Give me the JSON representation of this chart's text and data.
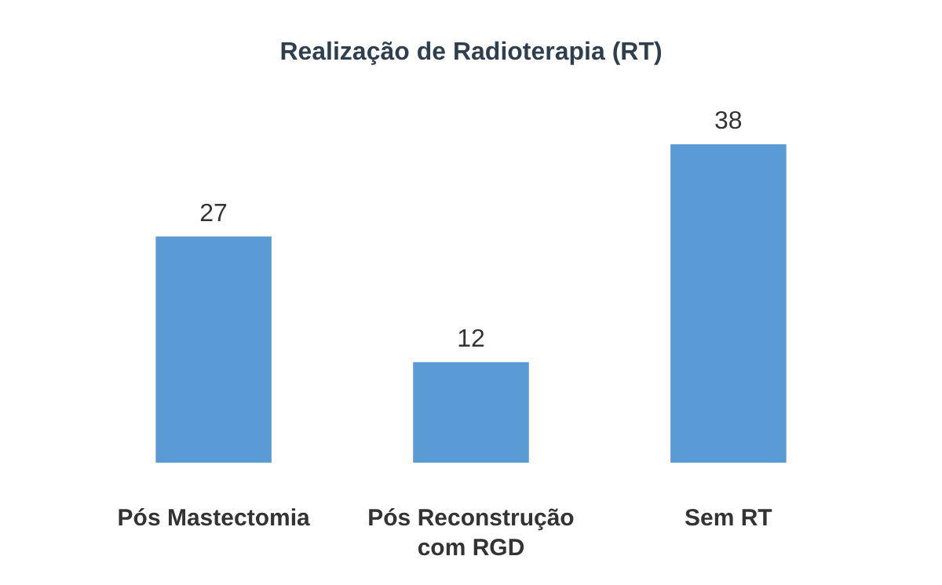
{
  "chart_data": {
    "type": "bar",
    "title": "Realização de Radioterapia (RT)",
    "categories": [
      "Pós Mastectomia",
      "Pós Reconstrução com RGD",
      "Sem RT"
    ],
    "values": [
      27,
      12,
      38
    ],
    "color": "#5b9bd5",
    "data_labels": true
  }
}
